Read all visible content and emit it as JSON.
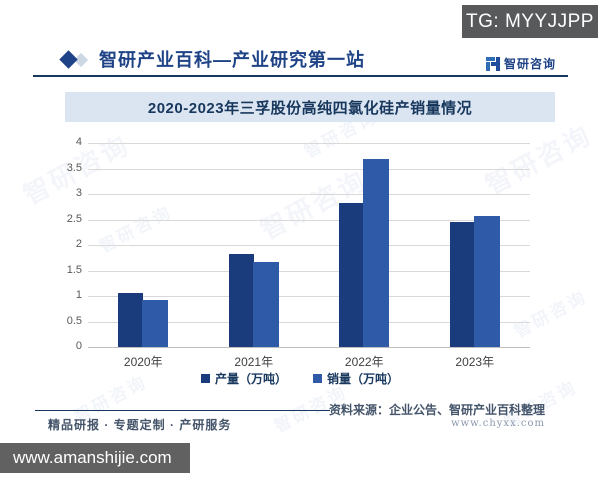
{
  "badges": {
    "tg": "TG: MYYJJPP",
    "site": "www.amanshijie.com"
  },
  "header": {
    "title": "智研产业百科—产业研究第一站",
    "brand": "智研咨询"
  },
  "chart_data": {
    "type": "bar",
    "title": "2020-2023年三孚股份高纯四氯化硅产销量情况",
    "categories": [
      "2020年",
      "2021年",
      "2022年",
      "2023年"
    ],
    "series": [
      {
        "name": "产量（万吨）",
        "values": [
          1.05,
          1.83,
          2.82,
          2.45
        ],
        "color": "#1a3c7d"
      },
      {
        "name": "销量（万吨）",
        "values": [
          0.92,
          1.66,
          3.68,
          2.57
        ],
        "color": "#2e5aa7"
      }
    ],
    "xlabel": "",
    "ylabel": "",
    "ylim": [
      0,
      4
    ],
    "yticks": [
      0,
      0.5,
      1,
      1.5,
      2,
      2.5,
      3,
      3.5,
      4
    ],
    "grid": true,
    "legend_position": "bottom"
  },
  "footer": {
    "services": "精品研报 · 专题定制 · 产研服务",
    "source": "资料来源：企业公告、智研产业百科整理",
    "source_url": "www.chyxx.com"
  },
  "watermark": {
    "text": "智研咨询"
  }
}
